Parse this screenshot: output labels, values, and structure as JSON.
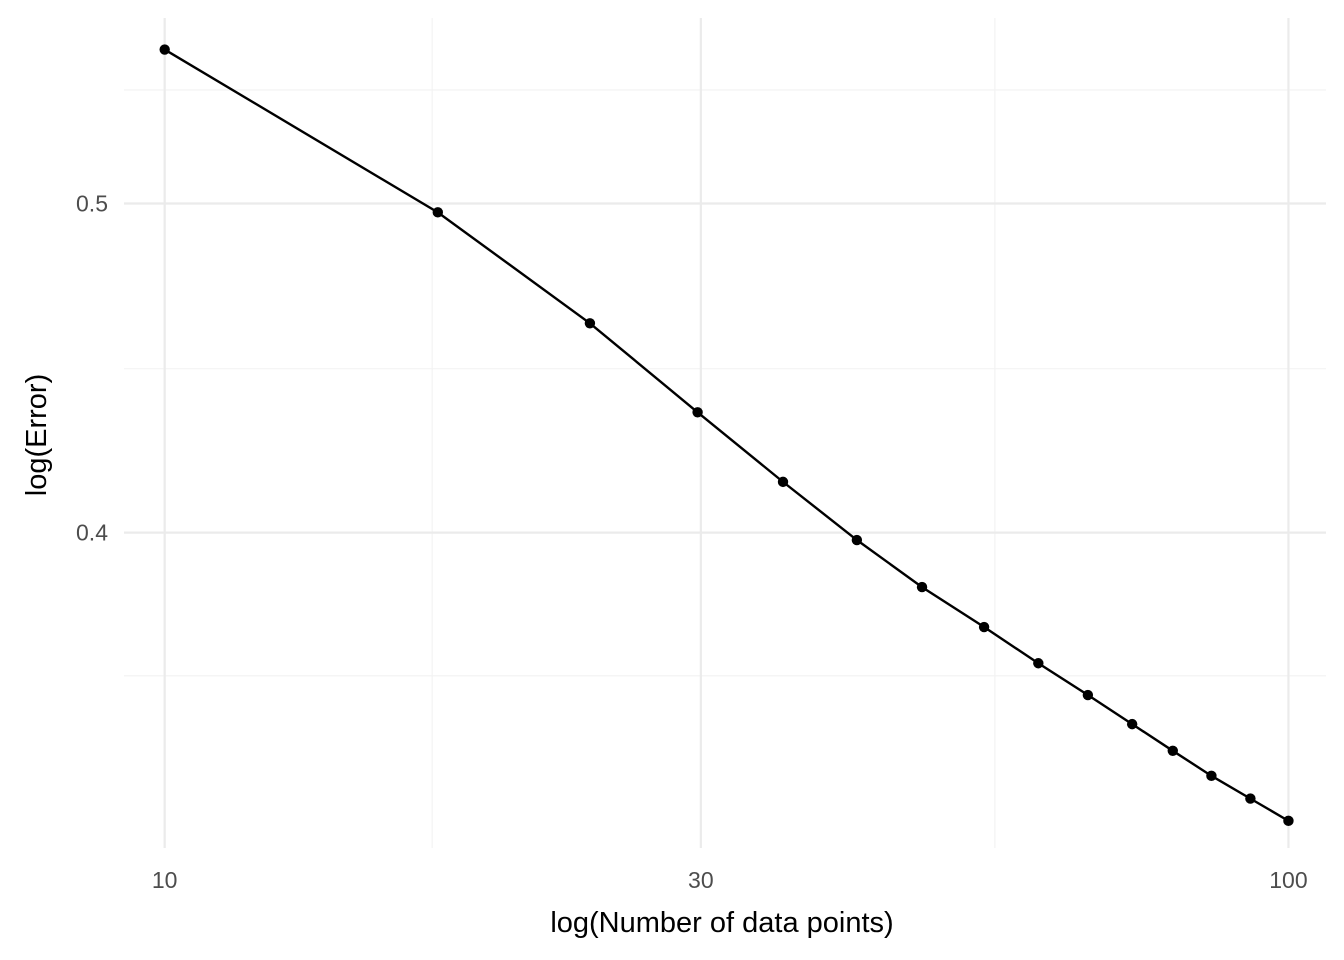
{
  "chart_data": {
    "type": "line",
    "xlabel": "log(Number of data points)",
    "ylabel": "log(Error)",
    "x_scale": "log10",
    "y_scale": "log10",
    "xlim": [
      9.2,
      108
    ],
    "ylim": [
      0.323,
      0.567
    ],
    "x_ticks": [
      10,
      30,
      100
    ],
    "x_tick_labels": [
      "10",
      "30",
      "100"
    ],
    "x_minor_ticks": [
      17.3,
      54.8
    ],
    "y_ticks": [
      0.4,
      0.5
    ],
    "y_tick_labels": [
      "0.4",
      "0.5"
    ],
    "y_minor_ticks": [
      0.363,
      0.447,
      0.54
    ],
    "grid": true,
    "series_color": "#000000",
    "x": [
      10,
      17.5,
      23.9,
      29.8,
      35.5,
      41.3,
      47.2,
      53.6,
      59.9,
      66.3,
      72.6,
      78.9,
      85.4,
      92.5,
      100
    ],
    "y": [
      0.555,
      0.497,
      0.461,
      0.434,
      0.414,
      0.398,
      0.3855,
      0.3752,
      0.3661,
      0.3583,
      0.3513,
      0.345,
      0.3392,
      0.334,
      0.329
    ]
  }
}
